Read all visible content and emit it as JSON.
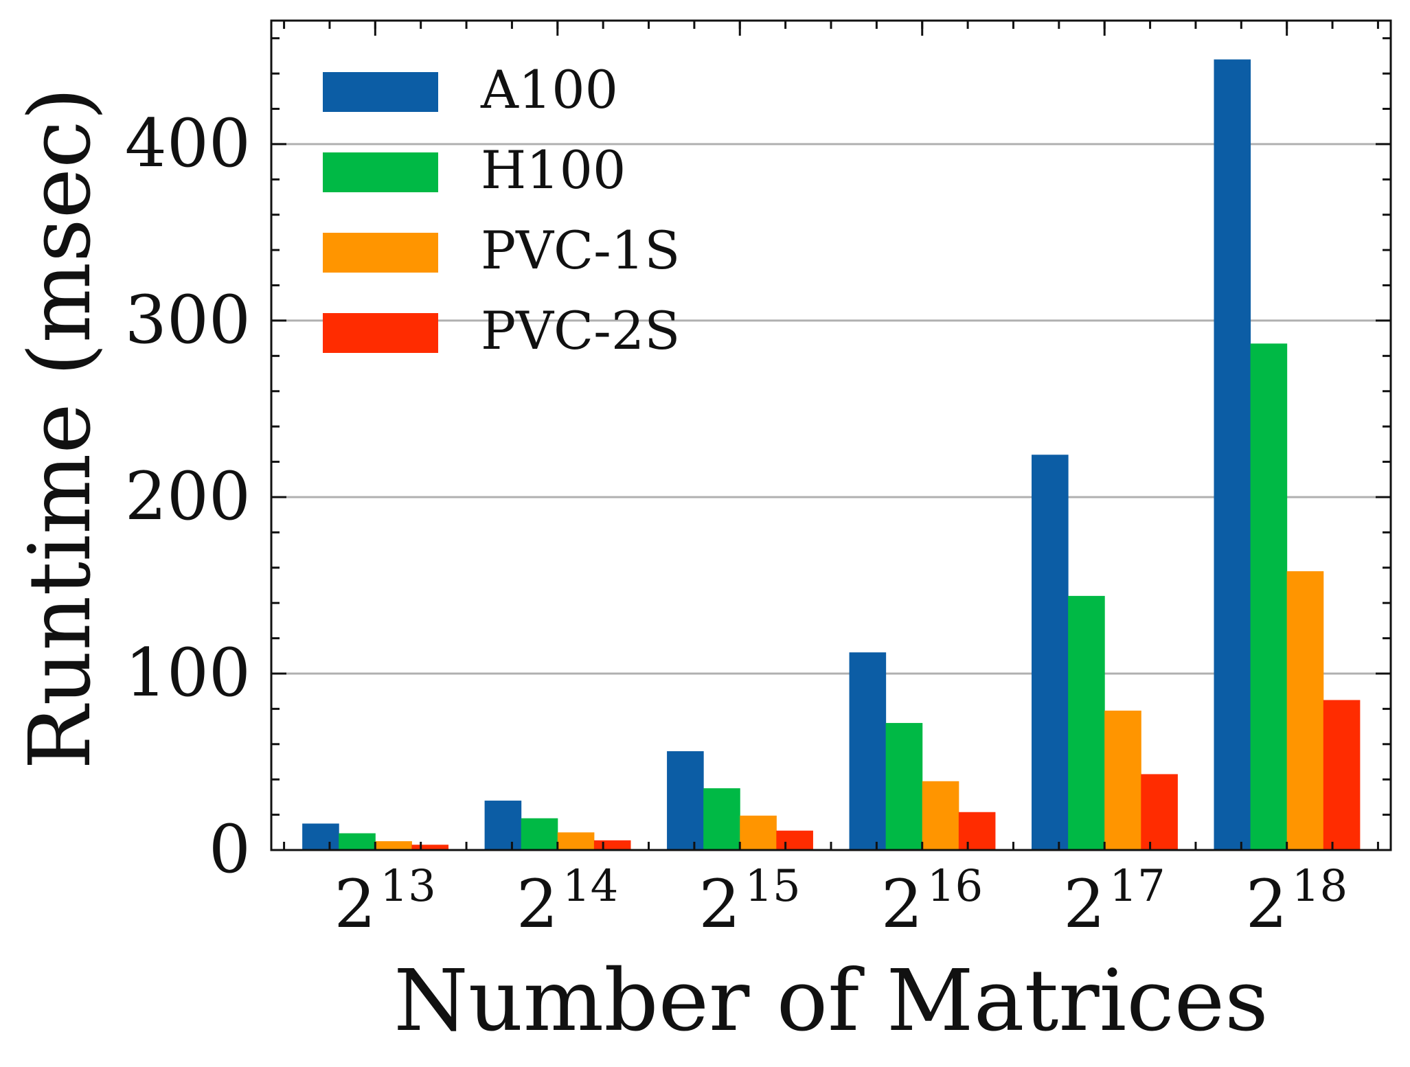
{
  "chart_data": {
    "type": "bar",
    "title": "",
    "xlabel": "Number of Matrices",
    "ylabel": "Runtime (msec)",
    "categories": [
      {
        "base": "2",
        "exp": "13"
      },
      {
        "base": "2",
        "exp": "14"
      },
      {
        "base": "2",
        "exp": "15"
      },
      {
        "base": "2",
        "exp": "16"
      },
      {
        "base": "2",
        "exp": "17"
      },
      {
        "base": "2",
        "exp": "18"
      }
    ],
    "series": [
      {
        "name": "A100",
        "color": "#0c5da5",
        "values": [
          15,
          28,
          56,
          112,
          224,
          448
        ]
      },
      {
        "name": "H100",
        "color": "#00b945",
        "values": [
          9.5,
          18,
          35,
          72,
          144,
          287
        ]
      },
      {
        "name": "PVC-1S",
        "color": "#ff9500",
        "values": [
          5,
          10,
          19.5,
          39,
          79,
          158
        ]
      },
      {
        "name": "PVC-2S",
        "color": "#ff2c00",
        "values": [
          3,
          5.5,
          11,
          21.5,
          43,
          85
        ]
      }
    ],
    "ylim": [
      0,
      470
    ],
    "yticks": [
      0,
      100,
      200,
      300,
      400
    ],
    "yticks_minor_step": 20,
    "grid": "horizontal",
    "legend_position": "top-left"
  }
}
